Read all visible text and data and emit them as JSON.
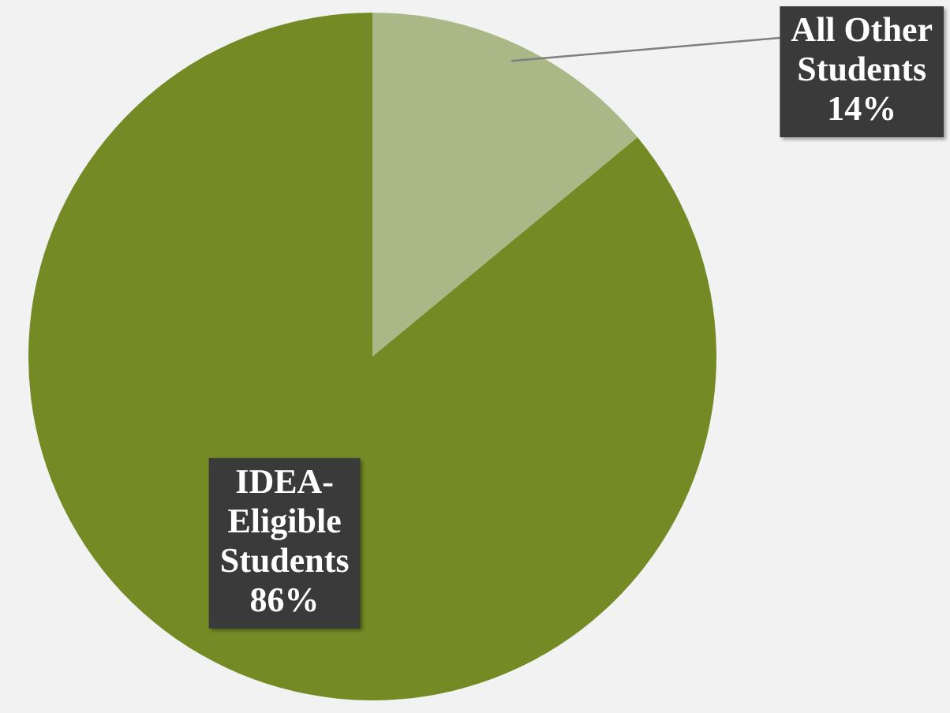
{
  "chart_data": {
    "type": "pie",
    "categories": [
      "All Other Students",
      "IDEA-Eligible Students"
    ],
    "values": [
      14,
      86
    ],
    "colors": [
      "#a9b886",
      "#748b25"
    ],
    "value_labels": [
      "14%",
      "86%"
    ],
    "legend": false
  }
}
